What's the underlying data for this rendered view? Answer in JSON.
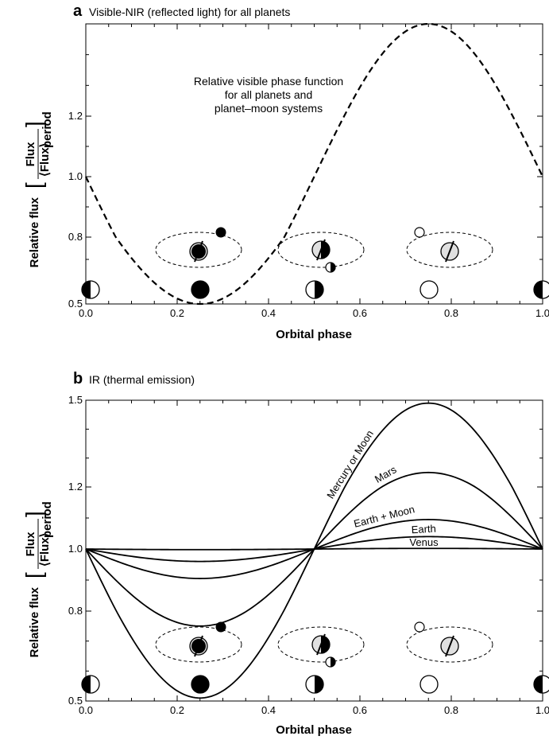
{
  "chart_data": [
    {
      "type": "line",
      "panel": "a",
      "title": "Visible-NIR (reflected light) for all planets",
      "xlabel": "Orbital phase",
      "ylabel": "Relative flux",
      "ylabel_fraction": {
        "numerator": "Flux",
        "denominator_main": "⟨Flux⟩",
        "denominator_sub": "period"
      },
      "xlim": [
        0,
        1
      ],
      "ylim": [
        0.5,
        1.5
      ],
      "xticks": [
        "0.0",
        "0.2",
        "0.4",
        "0.6",
        "0.8",
        "1.0"
      ],
      "yticks": [
        "0.5",
        "0.8",
        "1.0",
        "1.2"
      ],
      "series": [
        {
          "name": "Relative visible phase function for all planets and planet–moon systems",
          "style": "dashed",
          "amplitude": 0.5
        }
      ],
      "annotation": [
        "Relative visible phase function",
        "for all planets and",
        "planet–moon systems"
      ]
    },
    {
      "type": "line",
      "panel": "b",
      "title": "IR (thermal emission)",
      "xlabel": "Orbital phase",
      "ylabel": "Relative flux",
      "ylabel_fraction": {
        "numerator": "Flux",
        "denominator_main": "⟨Flux⟩",
        "denominator_sub": "period"
      },
      "xlim": [
        0,
        1
      ],
      "ylim": [
        0.5,
        1.5
      ],
      "xticks": [
        "0.0",
        "0.2",
        "0.4",
        "0.6",
        "0.8",
        "1.0"
      ],
      "yticks": [
        "0.5",
        "0.8",
        "1.0",
        "1.2",
        "1.5"
      ],
      "series": [
        {
          "name": "Mercury or Moon",
          "amplitude": 0.49
        },
        {
          "name": "Mars",
          "amplitude": 0.25
        },
        {
          "name": "Earth + Moon",
          "amplitude": 0.095
        },
        {
          "name": "Earth",
          "amplitude": 0.04
        },
        {
          "name": "Venus",
          "amplitude": 0.002
        }
      ]
    }
  ],
  "colors": {
    "line": "#000000",
    "planet_lit": "#e0e0e0",
    "planet_dark": "#000000"
  }
}
